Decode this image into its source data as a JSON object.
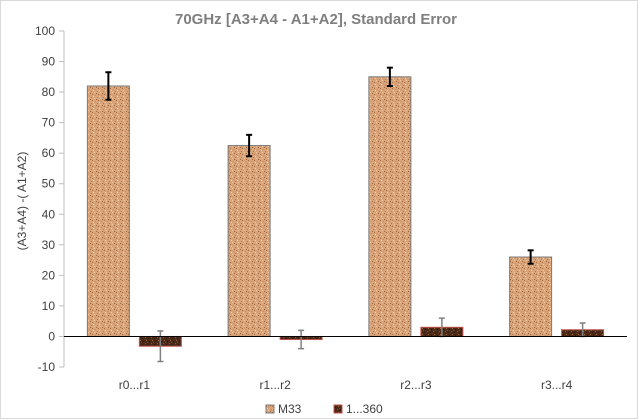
{
  "chart_data": {
    "type": "bar",
    "title": "70GHz  [A3+A4 - A1+A2],  Standard Error",
    "xlabel": "",
    "ylabel": "(A3+A4) -( A1+A2)",
    "ylim": [
      -10,
      100
    ],
    "yticks": [
      -10,
      0,
      10,
      20,
      30,
      40,
      50,
      60,
      70,
      80,
      90,
      100
    ],
    "grid": false,
    "legend_position": "bottom",
    "categories": [
      "r0...r1",
      "r1...r2",
      "r2...r3",
      "r3...r4"
    ],
    "series": [
      {
        "name": "M33",
        "values": [
          82,
          62.5,
          85,
          26
        ],
        "error": [
          4.5,
          3.5,
          3,
          2.2
        ],
        "color": "#d9a47a",
        "error_color": "#000000"
      },
      {
        "name": "1...360",
        "values": [
          -3.2,
          -1,
          3,
          2.2
        ],
        "error": [
          5,
          3,
          3,
          2.2
        ],
        "color": "#6b3a1f",
        "error_color": "#808080"
      }
    ]
  }
}
